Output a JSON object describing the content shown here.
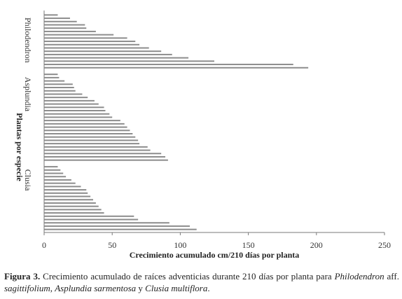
{
  "chart_data": {
    "type": "bar",
    "orientation": "horizontal",
    "xlabel": "Crecimiento acumulado cm/210 días por planta",
    "ylabel": "Plantas por especie",
    "xlim": [
      0,
      250
    ],
    "xticks": [
      "0",
      "50",
      "100",
      "150",
      "200",
      "250"
    ],
    "grid": false,
    "groups": [
      {
        "name": "Philodendron",
        "values": [
          10,
          19,
          24,
          30,
          31,
          38,
          51,
          61,
          67,
          70,
          77,
          86,
          94,
          106,
          125,
          183,
          194
        ]
      },
      {
        "name": "Asplundia",
        "values": [
          10,
          11,
          15,
          21,
          22,
          23,
          28,
          32,
          37,
          40,
          44,
          45,
          48,
          50,
          56,
          59,
          61,
          63,
          65,
          67,
          69,
          70,
          76,
          78,
          86,
          89,
          91
        ]
      },
      {
        "name": "Clusia",
        "values": [
          10,
          12,
          14,
          16,
          20,
          23,
          27,
          31,
          32,
          34,
          36,
          38,
          40,
          42,
          44,
          66,
          69,
          92,
          107,
          112
        ]
      }
    ],
    "bar_color": "#8c8c8c"
  },
  "caption": {
    "figure_label": "Figura 3.",
    "text": " Crecimiento acumulado de raíces adventicias durante 210 días por planta para ",
    "sp1": "Philodendron",
    "sp1_rest": " aff. ",
    "sp1_epithet": "sagittifolium",
    "sep1": ", ",
    "sp2": "Asplundia sarmentosa",
    "sep2": " y ",
    "sp3": "Clusia multiflora",
    "end": "."
  }
}
